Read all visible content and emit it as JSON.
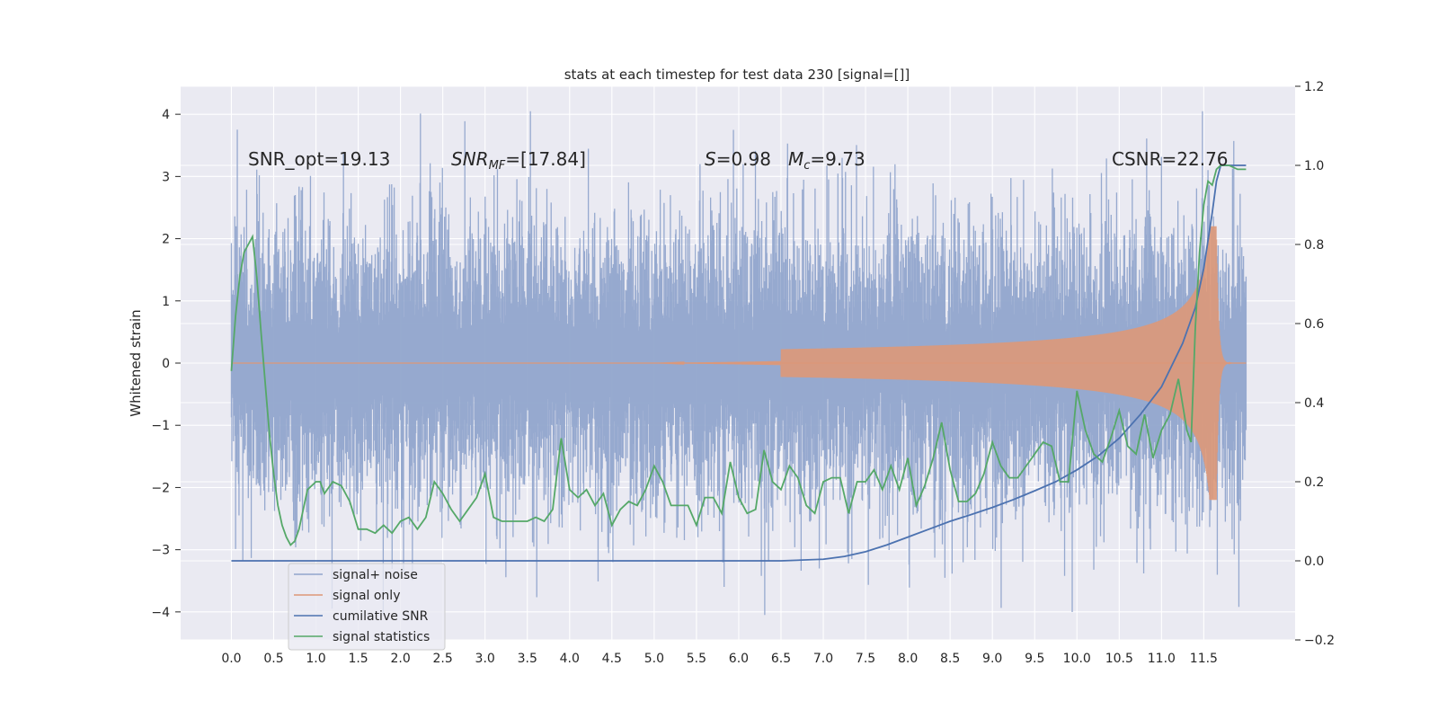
{
  "chart_data": {
    "type": "line",
    "title": "stats at each timestep for test data 230 [signal=[]]",
    "ylabel": "Whitened strain",
    "xlim": [
      -0.6,
      12.58
    ],
    "ylim": [
      -4.45,
      4.45
    ],
    "y2lim": [
      -0.2,
      1.2
    ],
    "xticks": [
      "0.0",
      "0.5",
      "1.0",
      "1.5",
      "2.0",
      "2.5",
      "3.0",
      "3.5",
      "4.0",
      "4.5",
      "5.0",
      "5.5",
      "6.0",
      "6.5",
      "7.0",
      "7.5",
      "8.0",
      "8.5",
      "9.0",
      "9.5",
      "10.0",
      "10.5",
      "11.0",
      "11.5"
    ],
    "yticks": [
      "−4",
      "−3",
      "−2",
      "−1",
      "0",
      "1",
      "2",
      "3",
      "4"
    ],
    "y2ticks": [
      "−0.2",
      "0.0",
      "0.2",
      "0.4",
      "0.6",
      "0.8",
      "1.0",
      "1.2"
    ],
    "annotations": {
      "snr_opt": "SNR_opt=19.13",
      "snr_mf_main": "SNR",
      "snr_mf_sub": "MF",
      "snr_mf_val": "=[17.84]",
      "s_main": "S",
      "s_val": "=0.98",
      "mc_main": "M",
      "mc_sub": "c",
      "mc_val": "=9.73",
      "csnr": "CSNR=22.76"
    },
    "legend": {
      "placement": "lower-left",
      "entries": [
        "signal+ noise",
        "signal only",
        "cumilative SNR",
        "signal statistics"
      ]
    },
    "colors": {
      "noise": "#91a5cc",
      "signal": "#dd9878",
      "cumulative": "#4c72b0",
      "stats": "#55a868",
      "background": "#eaeaf2",
      "grid": "#ffffff"
    },
    "series": [
      {
        "name": "cumilative SNR",
        "axis": "right",
        "x": [
          0.0,
          1.0,
          2.0,
          3.0,
          4.0,
          5.0,
          6.0,
          6.5,
          7.0,
          7.25,
          7.5,
          7.75,
          8.0,
          8.25,
          8.5,
          8.75,
          9.0,
          9.25,
          9.5,
          9.75,
          10.0,
          10.25,
          10.5,
          10.75,
          11.0,
          11.25,
          11.4,
          11.5,
          11.6,
          11.65,
          11.7,
          11.8,
          12.0
        ],
        "values": [
          0.0,
          0.0,
          0.0,
          0.0,
          0.0,
          0.0,
          0.0,
          0.0,
          0.004,
          0.011,
          0.023,
          0.04,
          0.06,
          0.08,
          0.1,
          0.117,
          0.135,
          0.155,
          0.177,
          0.2,
          0.23,
          0.265,
          0.31,
          0.37,
          0.44,
          0.55,
          0.64,
          0.74,
          0.88,
          0.96,
          1.0,
          1.0,
          1.0
        ]
      },
      {
        "name": "signal statistics",
        "axis": "right",
        "x": [
          0.0,
          0.05,
          0.1,
          0.15,
          0.2,
          0.25,
          0.3,
          0.35,
          0.4,
          0.45,
          0.5,
          0.55,
          0.6,
          0.65,
          0.7,
          0.75,
          0.8,
          0.9,
          1.0,
          1.05,
          1.1,
          1.2,
          1.3,
          1.4,
          1.5,
          1.6,
          1.7,
          1.8,
          1.9,
          2.0,
          2.1,
          2.2,
          2.3,
          2.4,
          2.5,
          2.6,
          2.7,
          2.8,
          2.9,
          3.0,
          3.1,
          3.2,
          3.3,
          3.4,
          3.5,
          3.6,
          3.7,
          3.8,
          3.9,
          4.0,
          4.1,
          4.2,
          4.3,
          4.4,
          4.5,
          4.6,
          4.7,
          4.8,
          4.9,
          5.0,
          5.1,
          5.2,
          5.3,
          5.4,
          5.5,
          5.6,
          5.7,
          5.8,
          5.9,
          6.0,
          6.1,
          6.2,
          6.3,
          6.4,
          6.5,
          6.6,
          6.7,
          6.8,
          6.9,
          7.0,
          7.1,
          7.2,
          7.3,
          7.4,
          7.5,
          7.6,
          7.7,
          7.8,
          7.9,
          8.0,
          8.1,
          8.2,
          8.3,
          8.4,
          8.5,
          8.6,
          8.7,
          8.8,
          8.9,
          9.0,
          9.1,
          9.2,
          9.3,
          9.4,
          9.5,
          9.6,
          9.7,
          9.8,
          9.9,
          10.0,
          10.1,
          10.2,
          10.3,
          10.4,
          10.5,
          10.6,
          10.7,
          10.8,
          10.9,
          11.0,
          11.1,
          11.2,
          11.3,
          11.35,
          11.4,
          11.45,
          11.5,
          11.55,
          11.6,
          11.65,
          11.7,
          11.8,
          11.9,
          12.0
        ],
        "values": [
          0.48,
          0.62,
          0.72,
          0.78,
          0.8,
          0.82,
          0.72,
          0.58,
          0.45,
          0.32,
          0.22,
          0.14,
          0.09,
          0.06,
          0.04,
          0.05,
          0.08,
          0.18,
          0.2,
          0.2,
          0.17,
          0.2,
          0.19,
          0.15,
          0.08,
          0.08,
          0.07,
          0.09,
          0.07,
          0.1,
          0.11,
          0.08,
          0.11,
          0.2,
          0.17,
          0.13,
          0.1,
          0.13,
          0.16,
          0.22,
          0.11,
          0.1,
          0.1,
          0.1,
          0.1,
          0.11,
          0.1,
          0.13,
          0.31,
          0.18,
          0.16,
          0.18,
          0.14,
          0.17,
          0.09,
          0.13,
          0.15,
          0.14,
          0.18,
          0.24,
          0.2,
          0.14,
          0.14,
          0.14,
          0.09,
          0.16,
          0.16,
          0.12,
          0.25,
          0.16,
          0.12,
          0.13,
          0.28,
          0.2,
          0.18,
          0.24,
          0.21,
          0.14,
          0.12,
          0.2,
          0.21,
          0.21,
          0.12,
          0.2,
          0.2,
          0.23,
          0.18,
          0.24,
          0.18,
          0.26,
          0.14,
          0.19,
          0.26,
          0.35,
          0.23,
          0.15,
          0.15,
          0.17,
          0.22,
          0.3,
          0.24,
          0.21,
          0.21,
          0.24,
          0.27,
          0.3,
          0.29,
          0.2,
          0.2,
          0.43,
          0.33,
          0.27,
          0.25,
          0.31,
          0.38,
          0.29,
          0.27,
          0.37,
          0.26,
          0.33,
          0.37,
          0.46,
          0.33,
          0.3,
          0.59,
          0.78,
          0.9,
          0.96,
          0.95,
          0.99,
          1.0,
          1.0,
          0.99,
          0.99
        ]
      },
      {
        "name": "signal only",
        "axis": "left",
        "description_fields": {
          "chirp_start": 6.5,
          "merger_time": 11.65,
          "peak_amplitude": 2.2,
          "ringdown_end": 11.75
        }
      },
      {
        "name": "signal+ noise",
        "axis": "left",
        "fields": {
          "x_start": 0.0,
          "x_end": 12.0,
          "typical_range": [
            -2.0,
            2.0
          ],
          "extremes": [
            -4.05,
            4.05
          ]
        }
      }
    ]
  }
}
